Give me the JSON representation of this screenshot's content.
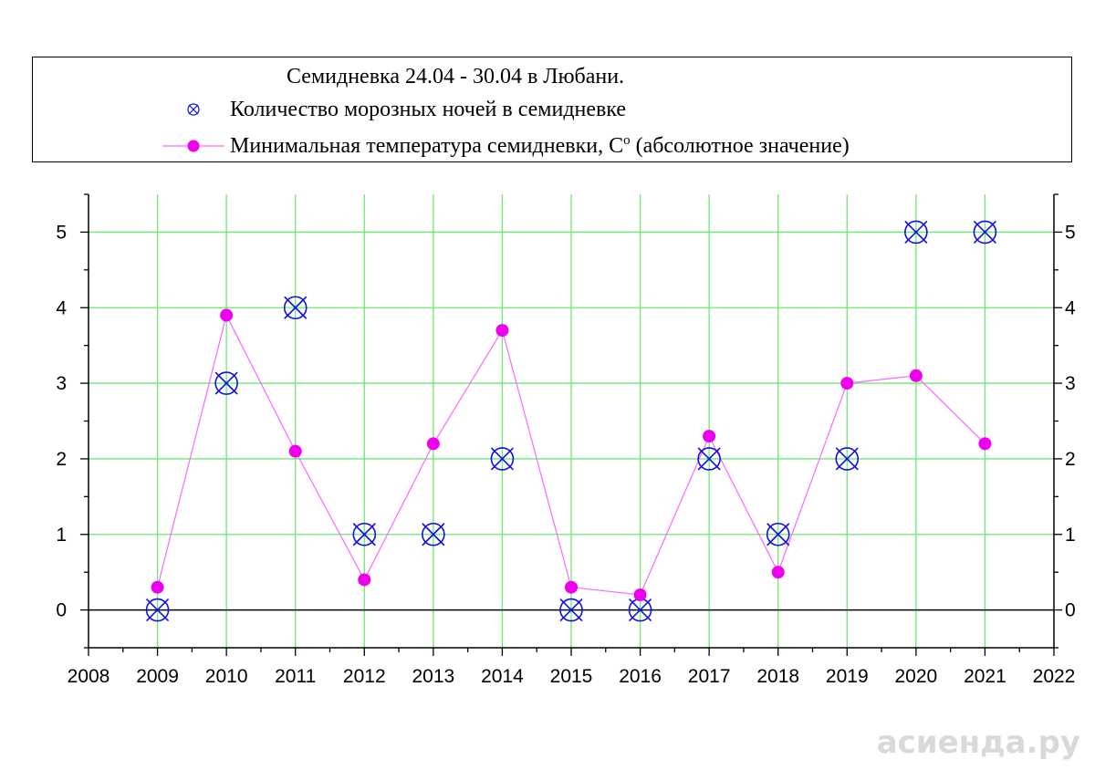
{
  "legend": {
    "title": "Семидневка 24.04 - 30.04 в Любани.",
    "item1": "Количество морозных ночей в семидневке",
    "item2_main": "Минимальная температура семидневки, С",
    "item2_sup": "o",
    "item2_tail": " (абсолютное значение)"
  },
  "watermark": "асиенда.ру",
  "colors": {
    "grid": "#6ee86e",
    "series1": "#1010e0",
    "series2_line": "#ff66ff",
    "series2_marker": "#ee00ee",
    "axis": "#000000"
  },
  "chart_data": {
    "type": "scatter",
    "xlim": [
      2008,
      2022
    ],
    "ylim": [
      -0.5,
      5.5
    ],
    "x_ticks": [
      2008,
      2009,
      2010,
      2011,
      2012,
      2013,
      2014,
      2015,
      2016,
      2017,
      2018,
      2019,
      2020,
      2021,
      2022
    ],
    "y_ticks": [
      0,
      1,
      2,
      3,
      4,
      5
    ],
    "grid": true,
    "legend_position": "top",
    "series": [
      {
        "name": "Количество морозных ночей в семидневке",
        "type": "scatter",
        "marker": "circled-x",
        "x": [
          2009,
          2010,
          2011,
          2012,
          2013,
          2014,
          2015,
          2016,
          2017,
          2018,
          2019,
          2020,
          2021
        ],
        "y": [
          0,
          3,
          4,
          1,
          1,
          2,
          0,
          0,
          2,
          1,
          2,
          5,
          5
        ]
      },
      {
        "name": "Минимальная температура семидневки, Сo (абсолютное значение)",
        "type": "line",
        "marker": "filled-circle",
        "x": [
          2009,
          2010,
          2011,
          2012,
          2013,
          2014,
          2015,
          2016,
          2017,
          2018,
          2019,
          2020,
          2021
        ],
        "y": [
          0.3,
          3.9,
          2.1,
          0.4,
          2.2,
          3.7,
          0.3,
          0.2,
          2.3,
          0.5,
          3.0,
          3.1,
          2.2
        ]
      }
    ]
  }
}
